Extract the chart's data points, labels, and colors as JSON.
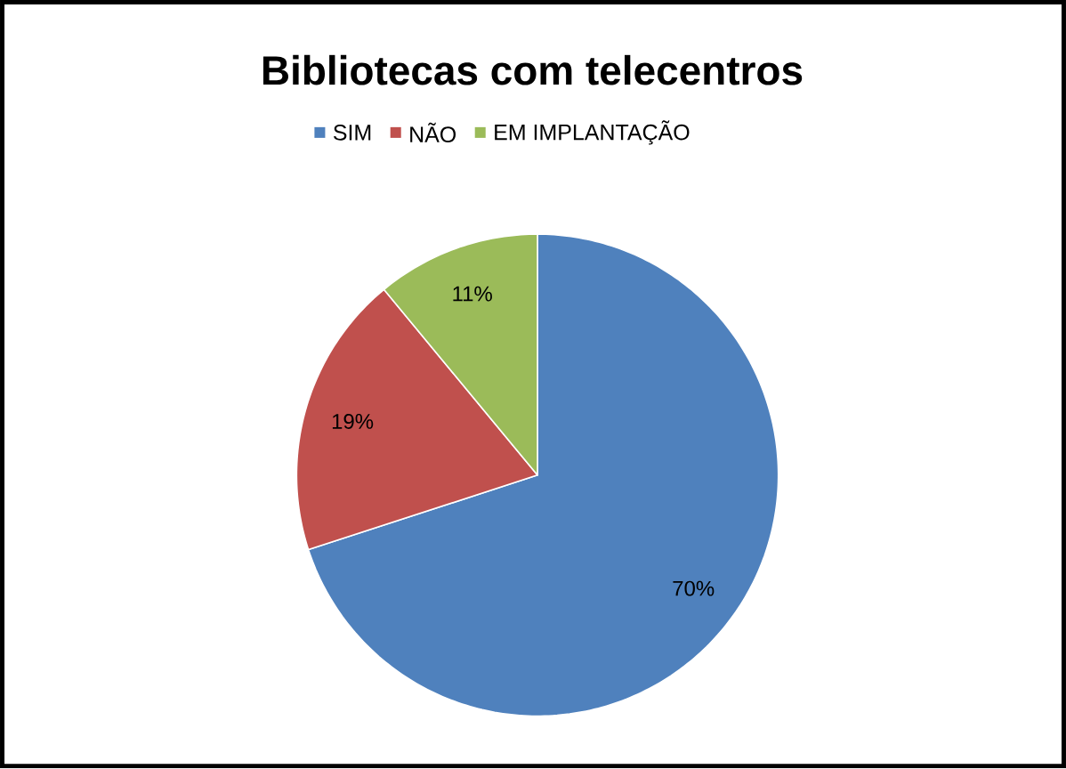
{
  "chart_data": {
    "type": "pie",
    "title": "Bibliotecas com telecentros",
    "categories": [
      "SIM",
      "NÃO",
      "EM IMPLANTAÇÃO"
    ],
    "values": [
      70,
      19,
      11
    ],
    "colors": [
      "#4f81bd",
      "#c0504d",
      "#9bbb59"
    ],
    "value_labels": [
      "70%",
      "19%",
      "11%"
    ],
    "legend": "top"
  }
}
